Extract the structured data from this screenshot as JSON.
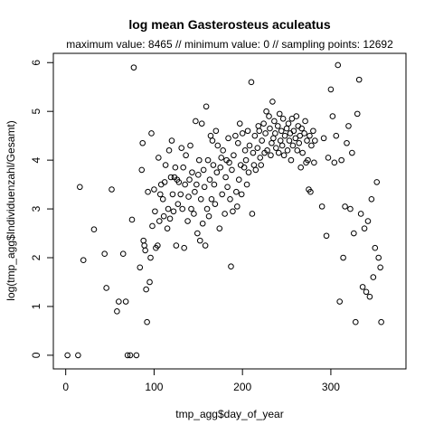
{
  "chart_data": {
    "type": "scatter",
    "title": "log mean Gasterosteus aculeatus",
    "subtitle": "maximum value: 8465  //  minimum value: 0  // sampling points: 12692",
    "x_label": "tmp_agg$day_of_year",
    "y_label": "log(tmp_agg$Individuenzahl/Gesamt)",
    "xlim": [
      -14,
      385
    ],
    "ylim": [
      -0.28,
      6.19
    ],
    "xticks": [
      0,
      100,
      200,
      300
    ],
    "yticks": [
      0,
      1,
      2,
      3,
      4,
      5,
      6
    ],
    "color": "#000000",
    "x": [
      2,
      14,
      16,
      20,
      32,
      44,
      46,
      52,
      58,
      60,
      65,
      68,
      70,
      73,
      75,
      77,
      80,
      84,
      86,
      87,
      88,
      89,
      90,
      91,
      92,
      93,
      95,
      96,
      97,
      98,
      100,
      101,
      102,
      104,
      105,
      106,
      107,
      108,
      110,
      111,
      112,
      113,
      115,
      116,
      117,
      118,
      119,
      120,
      121,
      122,
      123,
      124,
      125,
      126,
      127,
      128,
      130,
      131,
      132,
      133,
      134,
      135,
      136,
      138,
      139,
      140,
      141,
      142,
      143,
      145,
      146,
      147,
      148,
      149,
      150,
      151,
      152,
      153,
      154,
      155,
      156,
      157,
      158,
      159,
      160,
      161,
      162,
      163,
      164,
      165,
      166,
      167,
      168,
      169,
      170,
      171,
      172,
      174,
      175,
      176,
      177,
      178,
      180,
      181,
      182,
      183,
      184,
      185,
      186,
      187,
      188,
      189,
      190,
      192,
      193,
      194,
      195,
      196,
      197,
      198,
      199,
      200,
      202,
      203,
      204,
      205,
      206,
      207,
      208,
      210,
      211,
      212,
      213,
      214,
      215,
      217,
      218,
      219,
      220,
      221,
      222,
      224,
      225,
      226,
      227,
      228,
      230,
      231,
      232,
      233,
      234,
      235,
      236,
      237,
      238,
      240,
      241,
      242,
      243,
      244,
      245,
      246,
      247,
      248,
      250,
      251,
      252,
      253,
      254,
      255,
      256,
      257,
      258,
      260,
      261,
      262,
      263,
      264,
      265,
      266,
      267,
      268,
      270,
      271,
      272,
      273,
      274,
      275,
      276,
      277,
      278,
      280,
      281,
      282,
      290,
      292,
      295,
      297,
      300,
      302,
      304,
      306,
      308,
      310,
      312,
      314,
      316,
      318,
      320,
      322,
      324,
      326,
      328,
      330,
      332,
      334,
      336,
      338,
      340,
      342,
      344,
      346,
      348,
      350,
      352,
      354,
      356,
      357
    ],
    "y": [
      0,
      0,
      3.45,
      1.95,
      2.58,
      2.08,
      1.38,
      3.4,
      0.9,
      1.1,
      2.08,
      1.1,
      0,
      0,
      2.78,
      5.9,
      0,
      1.8,
      3.8,
      4.35,
      2.35,
      2.25,
      2.15,
      1.35,
      0.68,
      3.35,
      1.5,
      2.0,
      4.55,
      2.65,
      3.4,
      2.95,
      2.2,
      2.25,
      4.05,
      2.75,
      3.3,
      3.5,
      3.2,
      2.85,
      3.55,
      3.9,
      2.6,
      3.0,
      4.2,
      2.8,
      3.65,
      4.4,
      3.3,
      2.95,
      3.65,
      3.85,
      2.25,
      3.6,
      3.1,
      3.55,
      3.3,
      4.25,
      3.0,
      3.85,
      2.2,
      3.5,
      4.1,
      2.75,
      3.25,
      3.6,
      4.3,
      3.0,
      3.75,
      2.9,
      3.35,
      4.8,
      3.5,
      2.5,
      3.7,
      4.0,
      2.35,
      3.2,
      4.75,
      2.7,
      3.8,
      3.45,
      2.25,
      5.1,
      3.0,
      4.0,
      2.85,
      3.6,
      4.5,
      3.2,
      4.4,
      3.9,
      3.5,
      3.1,
      4.6,
      3.75,
      4.3,
      2.6,
      3.85,
      4.05,
      3.3,
      4.2,
      2.9,
      3.65,
      4.0,
      3.45,
      4.45,
      3.95,
      3.2,
      1.82,
      3.8,
      2.95,
      4.1,
      4.5,
      3.35,
      3.05,
      4.35,
      3.6,
      4.75,
      3.9,
      3.3,
      4.55,
      3.85,
      4.2,
      4.0,
      3.5,
      4.6,
      3.75,
      4.3,
      5.6,
      2.9,
      4.15,
      3.9,
      4.5,
      3.8,
      4.25,
      4.7,
      4.6,
      4.05,
      3.9,
      4.4,
      4.75,
      4.15,
      4.55,
      5.0,
      4.2,
      4.9,
      4.65,
      4.1,
      4.35,
      5.2,
      4.45,
      4.8,
      4.55,
      4.25,
      4.7,
      4.15,
      4.95,
      4.4,
      4.6,
      4.3,
      4.85,
      4.1,
      4.5,
      4.65,
      4.2,
      4.75,
      4.4,
      4.55,
      4.0,
      4.85,
      4.3,
      4.6,
      4.45,
      4.9,
      4.2,
      4.7,
      4.35,
      4.5,
      3.85,
      4.65,
      4.15,
      4.55,
      4.8,
      3.95,
      4.4,
      4.0,
      3.4,
      4.5,
      3.35,
      4.3,
      4.6,
      3.95,
      4.4,
      3.05,
      4.45,
      2.45,
      4.05,
      5.45,
      4.9,
      3.95,
      4.5,
      5.95,
      1.1,
      4.0,
      2.0,
      3.05,
      4.35,
      4.7,
      3.0,
      4.15,
      2.5,
      0.68,
      4.95,
      5.65,
      2.9,
      1.4,
      2.6,
      1.3,
      2.75,
      1.2,
      3.2,
      1.6,
      2.2,
      3.55,
      2.0,
      1.8,
      0.68
    ]
  }
}
